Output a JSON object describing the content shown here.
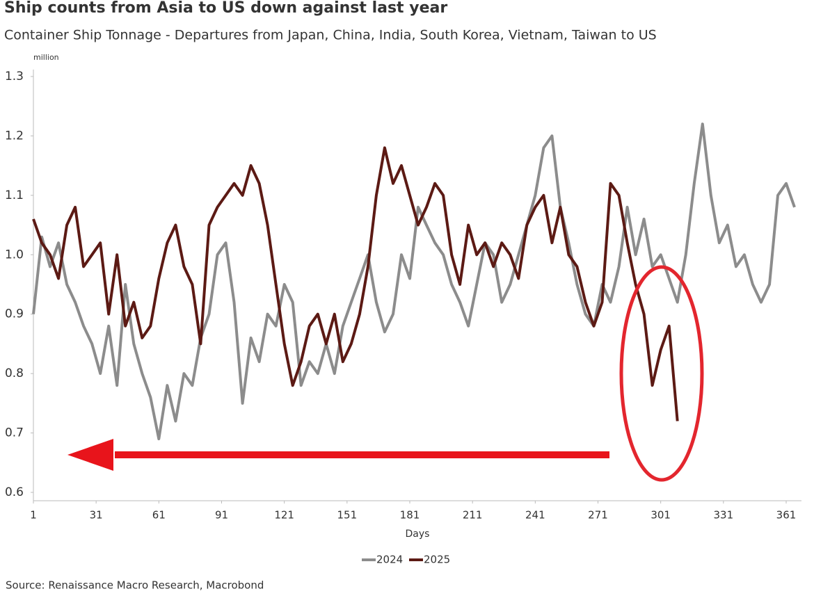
{
  "chart_data": {
    "type": "line",
    "title": "Ship counts from Asia to US down against last year",
    "subtitle": "Container Ship Tonnage - Departures from Japan, China, India, South Korea, Vietnam, Taiwan to US",
    "y_unit": "million",
    "x_label": "Days",
    "source": "Source: Renaissance Macro Research, Macrobond",
    "x": [
      1,
      5,
      9,
      13,
      17,
      21,
      25,
      29,
      33,
      37,
      41,
      45,
      49,
      53,
      57,
      61,
      65,
      69,
      73,
      77,
      81,
      85,
      89,
      93,
      97,
      101,
      105,
      109,
      113,
      117,
      121,
      125,
      129,
      133,
      137,
      141,
      145,
      149,
      153,
      157,
      161,
      165,
      169,
      173,
      177,
      181,
      185,
      189,
      193,
      197,
      201,
      205,
      209,
      213,
      217,
      221,
      225,
      229,
      233,
      237,
      241,
      245,
      249,
      253,
      257,
      261,
      265,
      269,
      273,
      277,
      281,
      285,
      289,
      293,
      297,
      301,
      305,
      309,
      313,
      317,
      321,
      325,
      329,
      333,
      337,
      341,
      345,
      349,
      353,
      357,
      361,
      365
    ],
    "series": [
      {
        "name": "2024",
        "color": "#8c8c8c",
        "values": [
          0.9,
          1.03,
          0.98,
          1.02,
          0.95,
          0.92,
          0.88,
          0.85,
          0.8,
          0.88,
          0.78,
          0.95,
          0.85,
          0.8,
          0.76,
          0.69,
          0.78,
          0.72,
          0.8,
          0.78,
          0.86,
          0.9,
          1.0,
          1.02,
          0.92,
          0.75,
          0.86,
          0.82,
          0.9,
          0.88,
          0.95,
          0.92,
          0.78,
          0.82,
          0.8,
          0.85,
          0.8,
          0.88,
          0.92,
          0.96,
          1.0,
          0.92,
          0.87,
          0.9,
          1.0,
          0.96,
          1.08,
          1.05,
          1.02,
          1.0,
          0.95,
          0.92,
          0.88,
          0.95,
          1.02,
          1.0,
          0.92,
          0.95,
          1.0,
          1.05,
          1.1,
          1.18,
          1.2,
          1.08,
          1.02,
          0.95,
          0.9,
          0.88,
          0.95,
          0.92,
          0.98,
          1.08,
          1.0,
          1.06,
          0.98,
          1.0,
          0.96,
          0.92,
          1.0,
          1.12,
          1.22,
          1.1,
          1.02,
          1.05,
          0.98,
          1.0,
          0.95,
          0.92,
          0.95,
          1.1,
          1.12,
          1.08
        ]
      },
      {
        "name": "2025",
        "color": "#5c1a14",
        "values": [
          1.06,
          1.02,
          1.0,
          0.96,
          1.05,
          1.08,
          0.98,
          1.0,
          1.02,
          0.9,
          1.0,
          0.88,
          0.92,
          0.86,
          0.88,
          0.96,
          1.02,
          1.05,
          0.98,
          0.95,
          0.85,
          1.05,
          1.08,
          1.1,
          1.12,
          1.1,
          1.15,
          1.12,
          1.05,
          0.95,
          0.85,
          0.78,
          0.82,
          0.88,
          0.9,
          0.85,
          0.9,
          0.82,
          0.85,
          0.9,
          0.98,
          1.1,
          1.18,
          1.12,
          1.15,
          1.1,
          1.05,
          1.08,
          1.12,
          1.1,
          1.0,
          0.95,
          1.05,
          1.0,
          1.02,
          0.98,
          1.02,
          1.0,
          0.96,
          1.05,
          1.08,
          1.1,
          1.02,
          1.08,
          1.0,
          0.98,
          0.92,
          0.88,
          0.92,
          1.12,
          1.1,
          1.02,
          0.95,
          0.9,
          0.78,
          0.84,
          0.88,
          0.72,
          null,
          null,
          null,
          null,
          null,
          null,
          null,
          null,
          null,
          null,
          null,
          null,
          null,
          null
        ]
      }
    ],
    "xlim": [
      1,
      368
    ],
    "xticks": [
      1,
      31,
      61,
      91,
      121,
      151,
      181,
      211,
      241,
      271,
      301,
      331,
      361
    ],
    "ylim": [
      0.6,
      1.3
    ],
    "yticks": [
      {
        "value": 0.6,
        "label": "0.6"
      },
      {
        "value": 0.7,
        "label": "0.7"
      },
      {
        "value": 0.8,
        "label": "0.8"
      },
      {
        "value": 0.9,
        "label": "0.9"
      },
      {
        "value": 1.0,
        "label": "1.0"
      },
      {
        "value": 1.1,
        "label": "1.1"
      },
      {
        "value": 1.2,
        "label": "1.2"
      },
      {
        "value": 1.3,
        "label": "1.3"
      }
    ],
    "legend": "bottom"
  }
}
